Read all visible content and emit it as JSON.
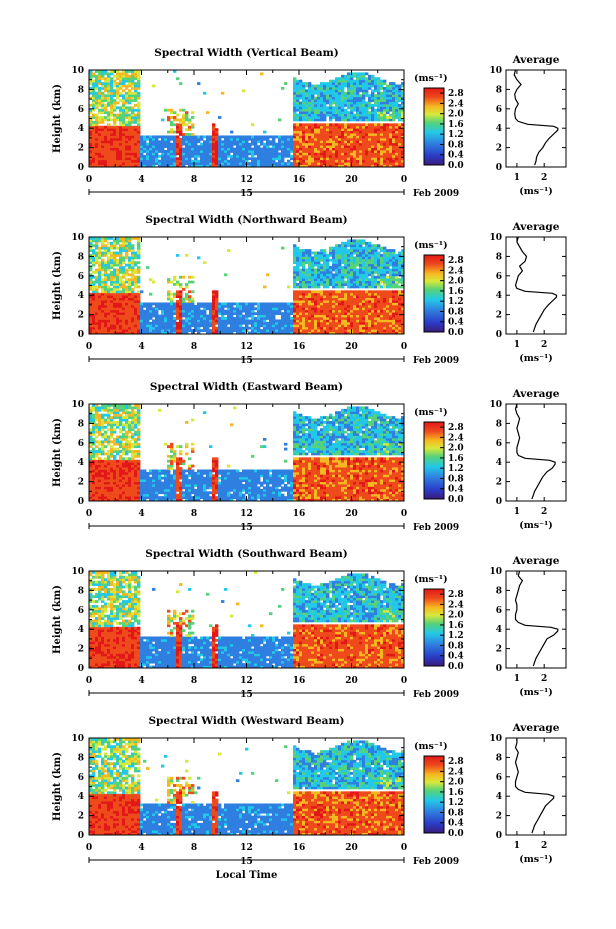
{
  "chart_data": [
    {
      "type": "heatmap",
      "title": "Spectral Width (Vertical Beam)",
      "ylabel": "Height (km)",
      "x_ticks": [
        "0",
        "4",
        "8",
        "12",
        "16",
        "20",
        "0"
      ],
      "y_ticks": [
        "0",
        "2",
        "4",
        "6",
        "8",
        "10"
      ],
      "date_ticks": [
        "15"
      ],
      "date_label": "Feb 2009",
      "xlabel": "",
      "xlim": [
        0,
        24
      ],
      "ylim": [
        0,
        10
      ],
      "colorbar": {
        "unit": "(ms⁻¹)",
        "ticks": [
          "0.0",
          "0.4",
          "0.8",
          "1.2",
          "1.6",
          "2.0",
          "2.4",
          "2.8"
        ],
        "range": [
          0,
          3.0
        ]
      },
      "profile": {
        "title": "Average",
        "xlabel": "(ms⁻¹)",
        "x_ticks": [
          "1",
          "2"
        ],
        "y_ticks": [
          "0",
          "2",
          "4",
          "6",
          "8",
          "10"
        ],
        "xlim": [
          0.6,
          2.8
        ],
        "height_km": [
          0.2,
          0.6,
          1.0,
          1.5,
          2.0,
          2.5,
          3.0,
          3.4,
          3.8,
          4.0,
          4.2,
          4.4,
          4.7,
          5.0,
          5.5,
          6.0,
          6.5,
          7.0,
          7.5,
          8.0,
          8.5,
          9.0,
          9.5,
          10.0
        ],
        "value": [
          1.65,
          1.7,
          1.72,
          1.8,
          1.95,
          2.05,
          2.2,
          2.35,
          2.5,
          2.5,
          2.35,
          1.4,
          1.05,
          0.95,
          0.92,
          0.95,
          1.05,
          0.95,
          0.92,
          1.0,
          1.15,
          1.0,
          0.9,
          0.95
        ]
      }
    },
    {
      "type": "heatmap",
      "title": "Spectral Width (Northward Beam)",
      "ylabel": "Height (km)",
      "x_ticks": [
        "0",
        "4",
        "8",
        "12",
        "16",
        "20",
        "0"
      ],
      "y_ticks": [
        "0",
        "2",
        "4",
        "6",
        "8",
        "10"
      ],
      "date_ticks": [
        "15"
      ],
      "date_label": "Feb 2009",
      "xlabel": "",
      "xlim": [
        0,
        24
      ],
      "ylim": [
        0,
        10
      ],
      "colorbar": {
        "unit": "(ms⁻¹)",
        "ticks": [
          "0.0",
          "0.4",
          "0.8",
          "1.2",
          "1.6",
          "2.0",
          "2.4",
          "2.8"
        ],
        "range": [
          0,
          3.0
        ]
      },
      "profile": {
        "title": "Average",
        "xlabel": "(ms⁻¹)",
        "x_ticks": [
          "1",
          "2"
        ],
        "y_ticks": [
          "0",
          "2",
          "4",
          "6",
          "8",
          "10"
        ],
        "xlim": [
          0.6,
          2.8
        ],
        "height_km": [
          0.2,
          0.6,
          1.0,
          1.5,
          2.0,
          2.5,
          3.0,
          3.4,
          3.8,
          4.0,
          4.2,
          4.4,
          4.7,
          5.0,
          5.5,
          6.0,
          6.5,
          7.0,
          7.5,
          8.0,
          8.5,
          9.0,
          9.5,
          10.0
        ],
        "value": [
          1.6,
          1.65,
          1.7,
          1.8,
          1.9,
          2.0,
          2.15,
          2.3,
          2.45,
          2.45,
          2.3,
          1.3,
          1.0,
          0.95,
          1.0,
          1.05,
          1.2,
          1.1,
          1.3,
          1.35,
          1.2,
          1.1,
          1.0,
          1.05
        ]
      }
    },
    {
      "type": "heatmap",
      "title": "Spectral Width (Eastward Beam)",
      "ylabel": "Height (km)",
      "x_ticks": [
        "0",
        "4",
        "8",
        "12",
        "16",
        "20",
        "0"
      ],
      "y_ticks": [
        "0",
        "2",
        "4",
        "6",
        "8",
        "10"
      ],
      "date_ticks": [
        "15"
      ],
      "date_label": "Feb 2009",
      "xlabel": "",
      "xlim": [
        0,
        24
      ],
      "ylim": [
        0,
        10
      ],
      "colorbar": {
        "unit": "(ms⁻¹)",
        "ticks": [
          "0.0",
          "0.4",
          "0.8",
          "1.2",
          "1.6",
          "2.0",
          "2.4",
          "2.8"
        ],
        "range": [
          0,
          3.0
        ]
      },
      "profile": {
        "title": "Average",
        "xlabel": "(ms⁻¹)",
        "x_ticks": [
          "1",
          "2"
        ],
        "y_ticks": [
          "0",
          "2",
          "4",
          "6",
          "8",
          "10"
        ],
        "xlim": [
          0.6,
          2.8
        ],
        "height_km": [
          0.2,
          0.6,
          1.0,
          1.5,
          2.0,
          2.5,
          3.0,
          3.4,
          3.8,
          4.0,
          4.2,
          4.4,
          4.7,
          5.0,
          5.5,
          6.0,
          6.5,
          7.0,
          7.5,
          8.0,
          8.5,
          9.0,
          9.5,
          10.0
        ],
        "value": [
          1.55,
          1.6,
          1.65,
          1.75,
          1.85,
          1.95,
          2.1,
          2.3,
          2.4,
          2.4,
          2.2,
          1.3,
          1.05,
          1.0,
          1.0,
          1.05,
          1.1,
          1.05,
          1.0,
          1.05,
          1.1,
          1.0,
          0.95,
          1.0
        ]
      }
    },
    {
      "type": "heatmap",
      "title": "Spectral Width (Southward Beam)",
      "ylabel": "Height (km)",
      "x_ticks": [
        "0",
        "4",
        "8",
        "12",
        "16",
        "20",
        "0"
      ],
      "y_ticks": [
        "0",
        "2",
        "4",
        "6",
        "8",
        "10"
      ],
      "date_ticks": [
        "15"
      ],
      "date_label": "Feb 2009",
      "xlabel": "",
      "xlim": [
        0,
        24
      ],
      "ylim": [
        0,
        10
      ],
      "colorbar": {
        "unit": "(ms⁻¹)",
        "ticks": [
          "0.0",
          "0.4",
          "0.8",
          "1.2",
          "1.6",
          "2.0",
          "2.4",
          "2.8"
        ],
        "range": [
          0,
          3.0
        ]
      },
      "profile": {
        "title": "Average",
        "xlabel": "(ms⁻¹)",
        "x_ticks": [
          "1",
          "2"
        ],
        "y_ticks": [
          "0",
          "2",
          "4",
          "6",
          "8",
          "10"
        ],
        "xlim": [
          0.6,
          2.8
        ],
        "height_km": [
          0.2,
          0.6,
          1.0,
          1.5,
          2.0,
          2.5,
          3.0,
          3.4,
          3.8,
          4.0,
          4.2,
          4.4,
          4.7,
          5.0,
          5.5,
          6.0,
          6.5,
          7.0,
          7.5,
          8.0,
          8.5,
          9.0,
          9.5,
          10.0
        ],
        "value": [
          1.6,
          1.65,
          1.7,
          1.8,
          1.9,
          2.0,
          2.1,
          2.35,
          2.5,
          2.5,
          2.25,
          1.3,
          1.05,
          0.95,
          0.95,
          1.0,
          1.0,
          0.95,
          1.0,
          1.05,
          1.1,
          1.2,
          1.05,
          1.1
        ]
      }
    },
    {
      "type": "heatmap",
      "title": "Spectral Width (Westward Beam)",
      "ylabel": "Height (km)",
      "x_ticks": [
        "0",
        "4",
        "8",
        "12",
        "16",
        "20",
        "0"
      ],
      "y_ticks": [
        "0",
        "2",
        "4",
        "6",
        "8",
        "10"
      ],
      "date_ticks": [
        "15"
      ],
      "date_label": "Feb 2009",
      "xlabel": "Local Time",
      "xlim": [
        0,
        24
      ],
      "ylim": [
        0,
        10
      ],
      "colorbar": {
        "unit": "(ms⁻¹)",
        "ticks": [
          "0.0",
          "0.4",
          "0.8",
          "1.2",
          "1.6",
          "2.0",
          "2.4",
          "2.8"
        ],
        "range": [
          0,
          3.0
        ]
      },
      "profile": {
        "title": "Average",
        "xlabel": "(ms⁻¹)",
        "x_ticks": [
          "1",
          "2"
        ],
        "y_ticks": [
          "0",
          "2",
          "4",
          "6",
          "8",
          "10"
        ],
        "xlim": [
          0.6,
          2.8
        ],
        "height_km": [
          0.2,
          0.6,
          1.0,
          1.5,
          2.0,
          2.5,
          3.0,
          3.4,
          3.8,
          4.0,
          4.2,
          4.4,
          4.7,
          5.0,
          5.5,
          6.0,
          6.5,
          7.0,
          7.5,
          8.0,
          8.5,
          9.0,
          9.5,
          10.0
        ],
        "value": [
          1.55,
          1.6,
          1.65,
          1.75,
          1.85,
          1.95,
          2.05,
          2.2,
          2.35,
          2.35,
          2.15,
          1.3,
          1.05,
          0.95,
          0.95,
          1.0,
          1.05,
          1.0,
          0.95,
          1.0,
          1.05,
          0.95,
          1.0,
          1.0
        ]
      }
    }
  ]
}
